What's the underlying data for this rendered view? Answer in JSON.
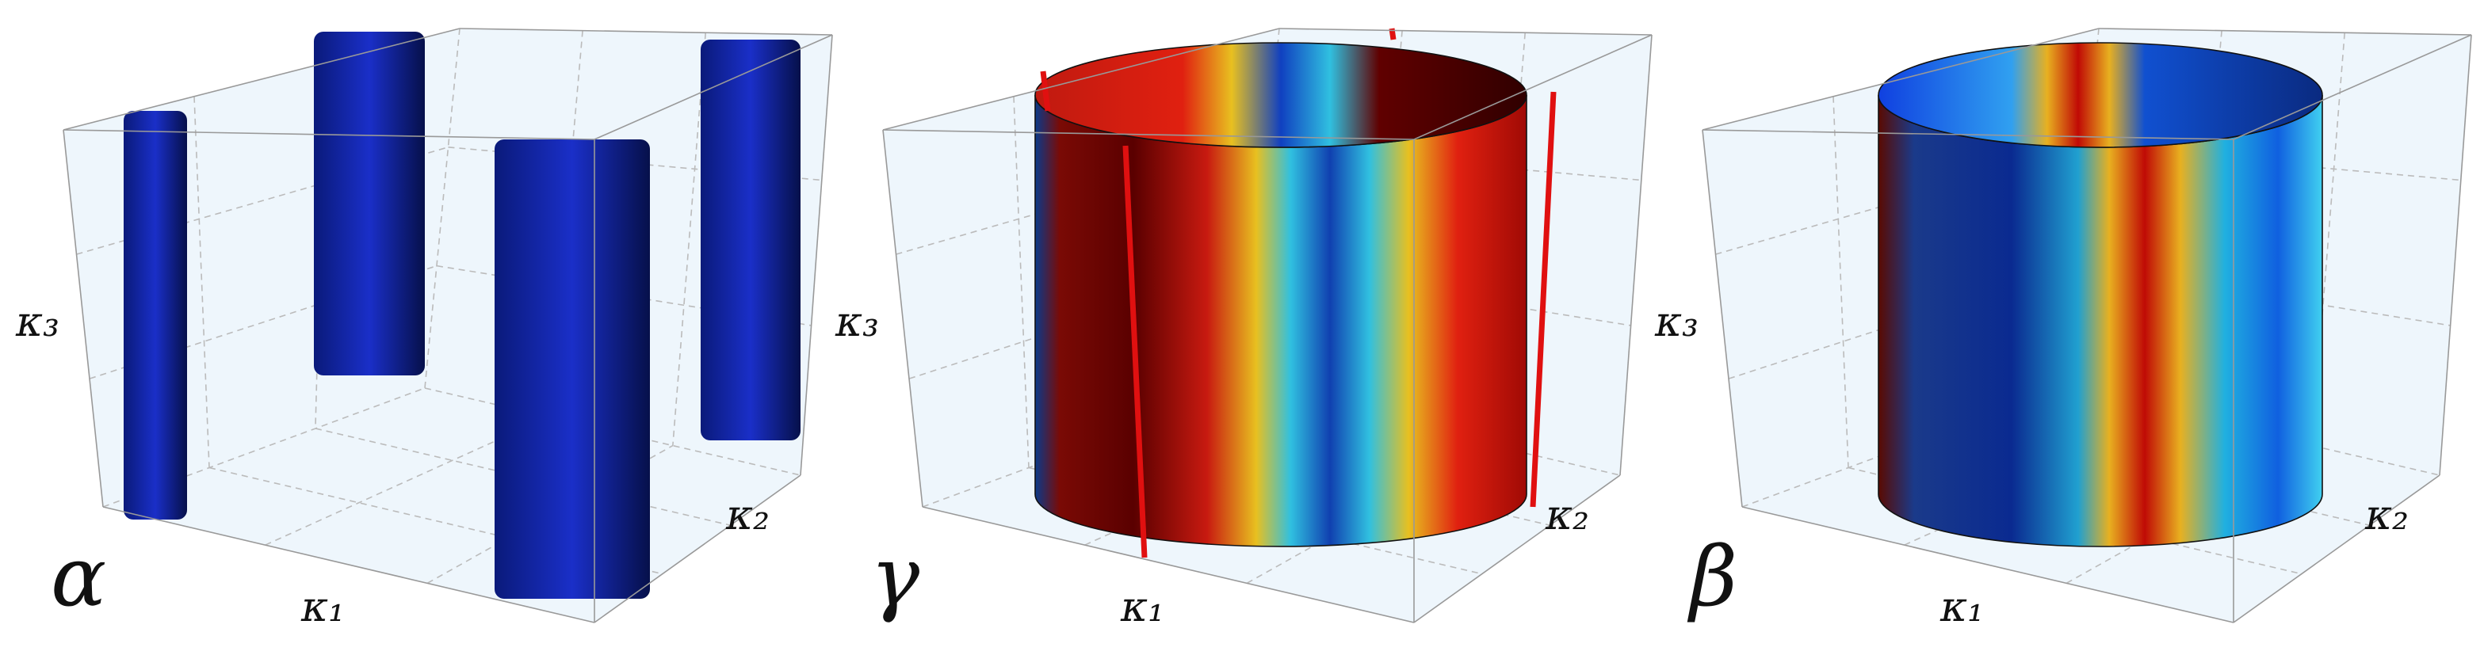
{
  "panels": [
    {
      "label": "α",
      "axes": {
        "x": "κ₁",
        "y": "κ₂",
        "z": "κ₃"
      }
    },
    {
      "label": "γ",
      "axes": {
        "x": "κ₁",
        "y": "κ₂",
        "z": "κ₃"
      }
    },
    {
      "label": "β",
      "axes": {
        "x": "κ₁",
        "y": "κ₂",
        "z": "κ₃"
      }
    }
  ]
}
